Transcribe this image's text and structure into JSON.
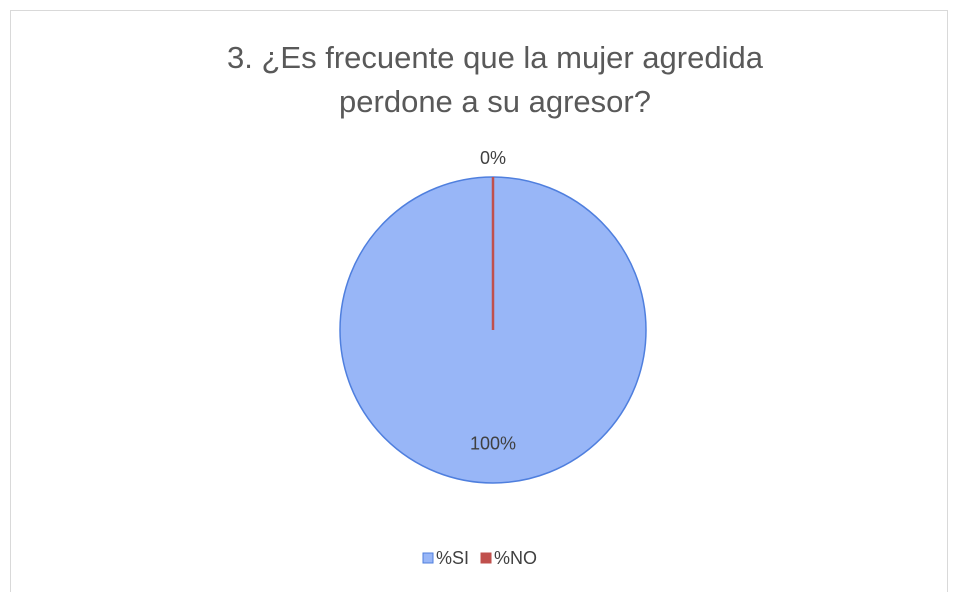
{
  "chart_data": {
    "type": "pie",
    "title": "3. ¿Es frecuente que la mujer agredida perdone a su agresor?",
    "categories": [
      "%SI",
      "%NO"
    ],
    "values": [
      100,
      0
    ],
    "value_labels": [
      "100%",
      "0%"
    ],
    "colors": [
      "#98b6f7",
      "#c0504d"
    ],
    "legend": "bottom"
  }
}
